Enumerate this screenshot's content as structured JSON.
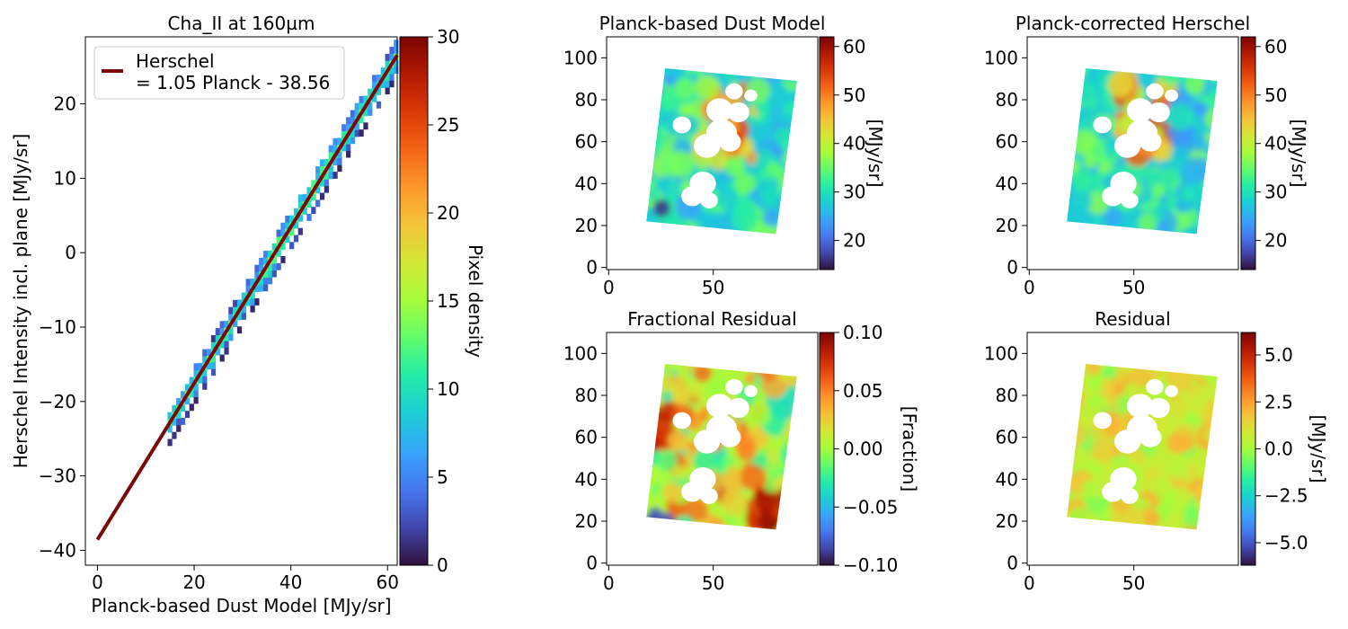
{
  "chart_data": [
    {
      "type": "heatmap",
      "title": "Cha_II at 160µm",
      "xlabel": "Planck-based Dust Model [MJy/sr]",
      "ylabel": "Herschel Intensity incl. plane [MJy/sr]",
      "xlim": [
        -2.5,
        62
      ],
      "ylim": [
        -42,
        29
      ],
      "xticks": [
        "0",
        "20",
        "40",
        "60"
      ],
      "yticks": [
        "20",
        "10",
        "0",
        "−10",
        "−20",
        "−30",
        "−40"
      ],
      "colorbar": {
        "label": "Pixel density",
        "range": [
          0,
          30
        ],
        "ticks": [
          "0",
          "5",
          "10",
          "15",
          "20",
          "25",
          "30"
        ]
      },
      "band": {
        "x_start": 14.5,
        "x_end": 61.5,
        "intercept": -38.56,
        "slope": 1.05
      },
      "fit_line": {
        "slope": 1.05,
        "intercept": -38.56,
        "x": [
          0,
          62
        ],
        "color": "#7a0a0a"
      },
      "legend": {
        "position": "upper left",
        "line1": "Herschel",
        "line2": "= 1.05 Planck - 38.56"
      }
    },
    {
      "type": "heatmap",
      "title": "Planck-based Dust Model",
      "xlim": [
        -1,
        100
      ],
      "ylim": [
        -1,
        110
      ],
      "xticks": [
        "0",
        "50"
      ],
      "yticks": [
        "0",
        "20",
        "40",
        "60",
        "80",
        "100"
      ],
      "colorbar": {
        "label": "[MJy/sr]",
        "range": [
          14,
          62
        ],
        "ticks": [
          "20",
          "30",
          "40",
          "50",
          "60"
        ]
      }
    },
    {
      "type": "heatmap",
      "title": "Planck-corrected Herschel",
      "xlim": [
        -1,
        100
      ],
      "ylim": [
        -1,
        110
      ],
      "xticks": [
        "0",
        "50"
      ],
      "yticks": [
        "0",
        "20",
        "40",
        "60",
        "80",
        "100"
      ],
      "colorbar": {
        "label": "[MJy/sr]",
        "range": [
          14,
          62
        ],
        "ticks": [
          "20",
          "30",
          "40",
          "50",
          "60"
        ]
      }
    },
    {
      "type": "heatmap",
      "title": "Fractional Residual",
      "xlim": [
        -1,
        100
      ],
      "ylim": [
        -1,
        110
      ],
      "xticks": [
        "0",
        "50"
      ],
      "yticks": [
        "0",
        "20",
        "40",
        "60",
        "80",
        "100"
      ],
      "colorbar": {
        "label": "[Fraction]",
        "range": [
          -0.1,
          0.1
        ],
        "ticks": [
          "0.10",
          "0.05",
          "0.00",
          "−0.05",
          "−0.10"
        ]
      }
    },
    {
      "type": "heatmap",
      "title": "Residual",
      "xlim": [
        -1,
        100
      ],
      "ylim": [
        -1,
        110
      ],
      "xticks": [
        "0",
        "50"
      ],
      "yticks": [
        "0",
        "20",
        "40",
        "60",
        "80",
        "100"
      ],
      "colorbar": {
        "label": "[MJy/sr]",
        "range": [
          -6.2,
          6.2
        ],
        "ticks": [
          "5.0",
          "2.5",
          "0.0",
          "−2.5",
          "−5.0"
        ]
      }
    }
  ]
}
